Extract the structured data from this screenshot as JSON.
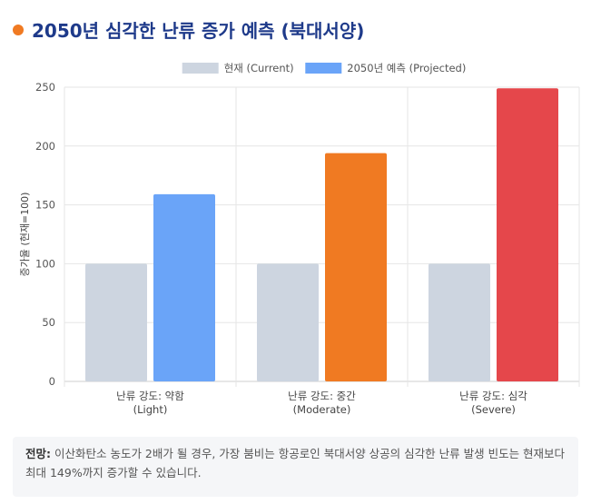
{
  "header": {
    "title": "2050년 심각한 난류 증가 예측 (북대서양)",
    "dot_color": "#f07a22"
  },
  "chart_data": {
    "type": "bar",
    "categories": [
      {
        "line1": "난류 강도: 약함",
        "line2": "(Light)"
      },
      {
        "line1": "난류 강도: 중간",
        "line2": "(Moderate)"
      },
      {
        "line1": "난류 강도: 심각",
        "line2": "(Severe)"
      }
    ],
    "series": [
      {
        "name": "현재 (Current)",
        "values": [
          100,
          100,
          100
        ],
        "colors": [
          "#cdd5e0",
          "#cdd5e0",
          "#cdd5e0"
        ]
      },
      {
        "name": "2050년 예측 (Projected)",
        "values": [
          159,
          194,
          249
        ],
        "colors": [
          "#6aa4f8",
          "#f07a22",
          "#e5474b"
        ]
      }
    ],
    "legend_colors": [
      "#cdd5e0",
      "#6aa4f8"
    ],
    "ylabel": "증가율 (현재=100)",
    "ylim": [
      0,
      250
    ],
    "yticks": [
      0,
      50,
      100,
      150,
      200,
      250
    ],
    "legend_position": "top-center",
    "grid": true
  },
  "note": {
    "label": "전망:",
    "text": "이산화탄소 농도가 2배가 될 경우, 가장 붐비는 항공로인 북대서양 상공의 심각한 난류 발생 빈도는 현재보다 최대 149%까지 증가할 수 있습니다."
  }
}
